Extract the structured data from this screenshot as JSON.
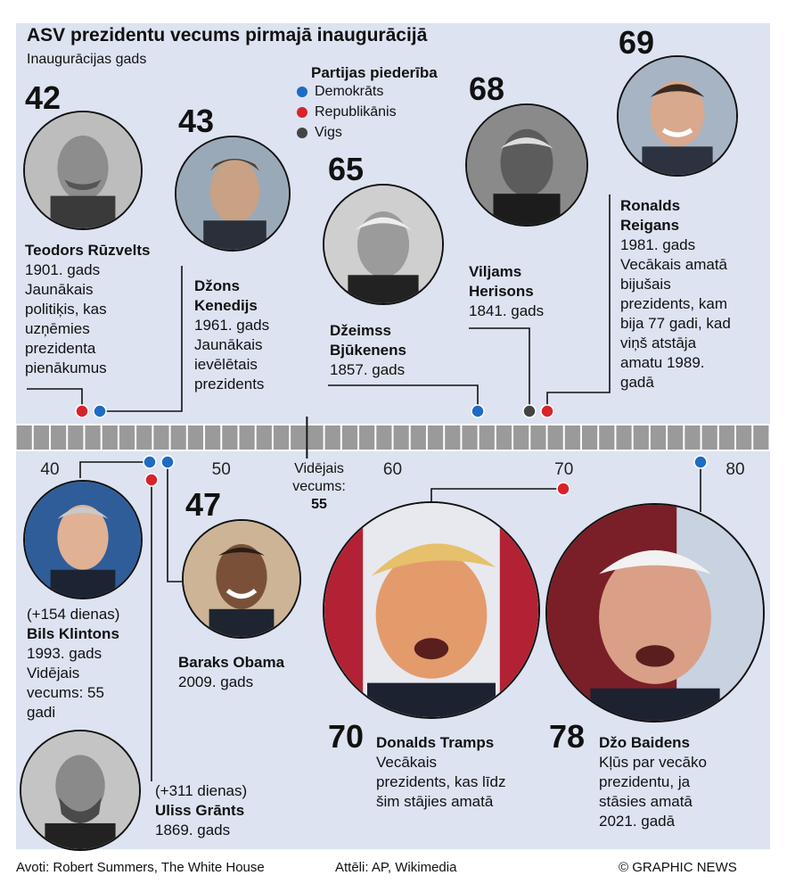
{
  "header": {
    "title": "ASV prezidentu vecums pirmajā inaugurācijā",
    "subtitle": "Inaugurācijas gads"
  },
  "legend": {
    "title": "Partijas piederība",
    "items": [
      {
        "label": "Demokrāts",
        "color": "#1f6bc2"
      },
      {
        "label": "Republikānis",
        "color": "#d8232a"
      },
      {
        "label": "Vigs",
        "color": "#444444"
      }
    ]
  },
  "presidents": {
    "roosevelt": {
      "age": "42",
      "name": "Teodors Rūzvelts",
      "note": "1901. gads Jaunākais politiķis, kas uzņēmies prezidenta pienākumus"
    },
    "kennedy": {
      "age": "43",
      "name": "Džons Kenedijs",
      "note": "1961. gads Jaunākais ievēlētais prezidents"
    },
    "buchanan": {
      "age": "65",
      "name": "Džeimss Bjūkenens",
      "note": "1857. gads"
    },
    "harrison": {
      "age": "68",
      "name": "Viljams Herisons",
      "note": "1841. gads"
    },
    "reagan": {
      "age": "69",
      "name": "Ronalds Reigans",
      "note": "1981. gads Vecākais amatā bijušais prezidents, kam bija 77 gadi, kad viņš atstāja amatu 1989. gadā"
    },
    "clinton": {
      "extra": "(+154 dienas)",
      "name": "Bils Klintons",
      "note": "1993. gads Vidējais vecums: 55 gadi"
    },
    "grant": {
      "extra": "(+311 dienas)",
      "name": "Uliss Grānts",
      "note": "1869. gads"
    },
    "obama": {
      "age": "47",
      "name": "Baraks Obama",
      "note": "2009. gads"
    },
    "trump": {
      "age": "70",
      "name": "Donalds Tramps",
      "note": "Vecākais prezidents, kas līdz šim stājies amatā"
    },
    "biden": {
      "age": "78",
      "name": "Džo Baidens",
      "note": "Kļūs par vecāko prezidentu, ja stāsies amatā 2021. gadā"
    }
  },
  "chart_data": {
    "type": "scatter",
    "xlim": [
      37,
      81
    ],
    "x_ticks": [
      40,
      50,
      60,
      70,
      80
    ],
    "average_label": "Vidējais vecums:",
    "average_value": 55,
    "points": [
      {
        "name": "Teodors Rūzvelts",
        "age": 42.9,
        "party": "Republikānis",
        "side": "top"
      },
      {
        "name": "Džons Kenedijs",
        "age": 43.6,
        "party": "Demokrāts",
        "side": "top"
      },
      {
        "name": "Džeimss Bjūkenens",
        "age": 65.9,
        "party": "Demokrāts",
        "side": "top"
      },
      {
        "name": "Viljams Herisons",
        "age": 68.1,
        "party": "Vigs",
        "side": "top"
      },
      {
        "name": "Ronalds Reigans",
        "age": 69.9,
        "party": "Republikānis",
        "side": "top"
      },
      {
        "name": "Bils Klintons",
        "age": 46.4,
        "party": "Demokrāts",
        "side": "bottom"
      },
      {
        "name": "Uliss Grānts",
        "age": 46.9,
        "party": "Republikānis",
        "side": "bottom"
      },
      {
        "name": "Baraks Obama",
        "age": 47.5,
        "party": "Demokrāts",
        "side": "bottom"
      },
      {
        "name": "Donalds Tramps",
        "age": 70.6,
        "party": "Republikānis",
        "side": "bottom"
      },
      {
        "name": "Džo Baidens",
        "age": 78.2,
        "party": "Demokrāts",
        "side": "bottom"
      }
    ]
  },
  "footer": {
    "sources": "Avoti: Robert Summers, The White House",
    "images": "Attēli: AP, Wikimedia",
    "credit": "© GRAPHIC NEWS"
  }
}
